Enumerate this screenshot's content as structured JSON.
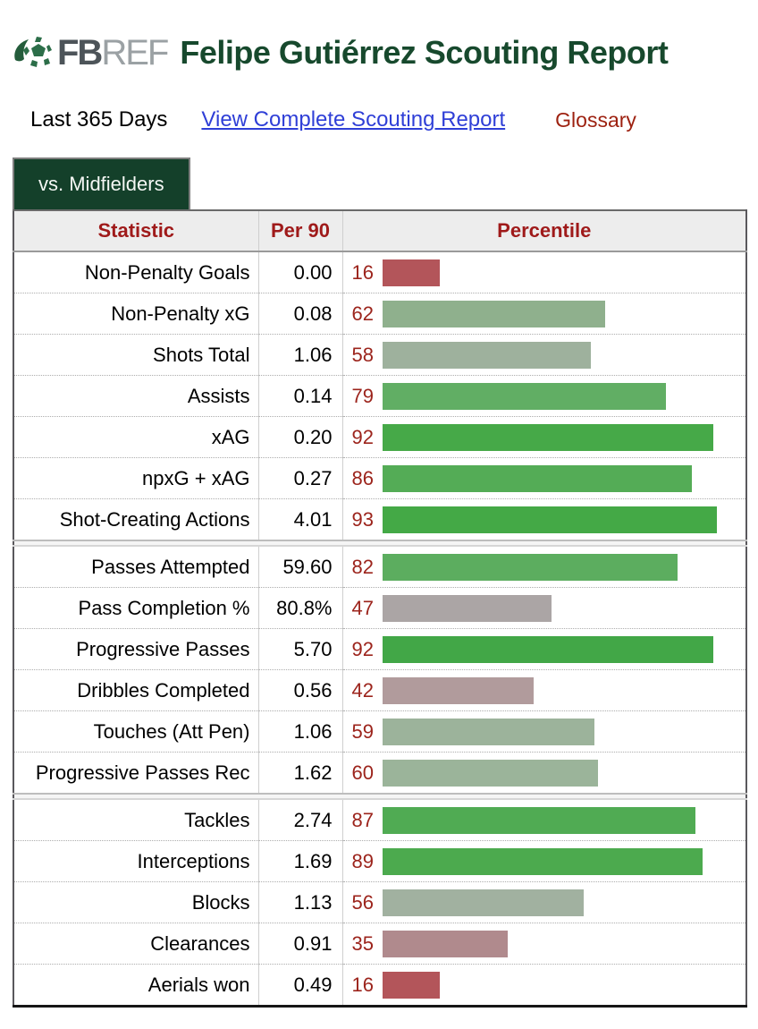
{
  "header": {
    "logo_fb": "FB",
    "logo_ref": "REF",
    "title": "Felipe Gutiérrez Scouting Report"
  },
  "subheader": {
    "period": "Last 365 Days",
    "link_label": "View Complete Scouting Report",
    "glossary_label": "Glossary"
  },
  "tab": {
    "label": "vs. Midfielders"
  },
  "colors": {
    "title_green": "#17492d",
    "tab_background": "#14402a",
    "header_red": "#9f1a1a",
    "percentile_red": "#9c241c",
    "link_blue": "#2f3fd7",
    "glossary_red": "#9d2110"
  },
  "table": {
    "columns": [
      "Statistic",
      "Per 90",
      "Percentile"
    ],
    "sections": [
      {
        "rows": [
          {
            "stat": "Non-Penalty Goals",
            "per90": "0.00",
            "percentile": 16,
            "color": "#b3555a"
          },
          {
            "stat": "Non-Penalty xG",
            "per90": "0.08",
            "percentile": 62,
            "color": "#8fb08d"
          },
          {
            "stat": "Shots Total",
            "per90": "1.06",
            "percentile": 58,
            "color": "#9eb19d"
          },
          {
            "stat": "Assists",
            "per90": "0.14",
            "percentile": 79,
            "color": "#61ae64"
          },
          {
            "stat": "xAG",
            "per90": "0.20",
            "percentile": 92,
            "color": "#46a948"
          },
          {
            "stat": "npxG + xAG",
            "per90": "0.27",
            "percentile": 86,
            "color": "#54ac56"
          },
          {
            "stat": "Shot-Creating Actions",
            "per90": "4.01",
            "percentile": 93,
            "color": "#44a946"
          }
        ]
      },
      {
        "rows": [
          {
            "stat": "Passes Attempted",
            "per90": "59.60",
            "percentile": 82,
            "color": "#5cad5f"
          },
          {
            "stat": "Pass Completion %",
            "per90": "80.8%",
            "percentile": 47,
            "color": "#aba5a5"
          },
          {
            "stat": "Progressive Passes",
            "per90": "5.70",
            "percentile": 92,
            "color": "#42a747"
          },
          {
            "stat": "Dribbles Completed",
            "per90": "0.56",
            "percentile": 42,
            "color": "#b19b9c"
          },
          {
            "stat": "Touches (Att Pen)",
            "per90": "1.06",
            "percentile": 59,
            "color": "#9cb39b"
          },
          {
            "stat": "Progressive Passes Rec",
            "per90": "1.62",
            "percentile": 60,
            "color": "#9bb49a"
          }
        ]
      },
      {
        "rows": [
          {
            "stat": "Tackles",
            "per90": "2.74",
            "percentile": 87,
            "color": "#50ab53"
          },
          {
            "stat": "Interceptions",
            "per90": "1.69",
            "percentile": 89,
            "color": "#4caa4e"
          },
          {
            "stat": "Blocks",
            "per90": "1.13",
            "percentile": 56,
            "color": "#a1b1a0"
          },
          {
            "stat": "Clearances",
            "per90": "0.91",
            "percentile": 35,
            "color": "#b08a8d"
          },
          {
            "stat": "Aerials won",
            "per90": "0.49",
            "percentile": 16,
            "color": "#b3555a"
          }
        ]
      }
    ]
  }
}
